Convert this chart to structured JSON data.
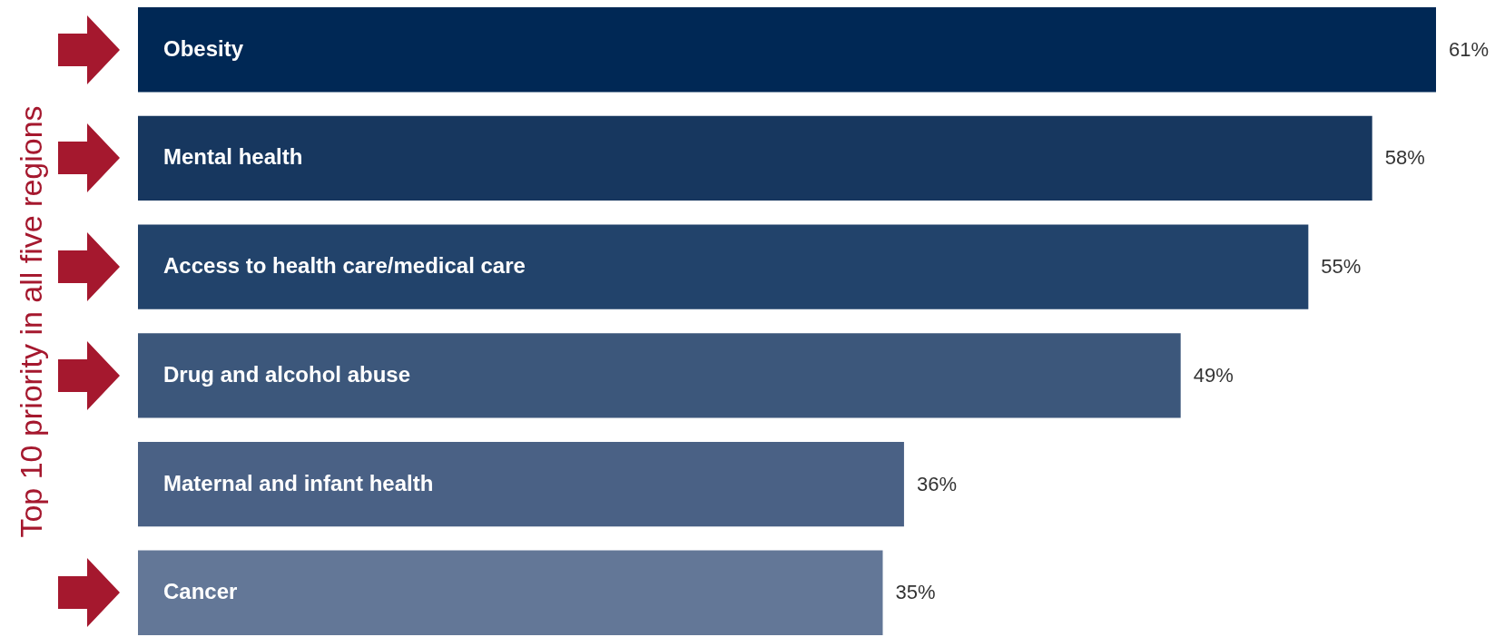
{
  "chart_data": {
    "type": "bar",
    "orientation": "horizontal",
    "ylabel": "Top 10 priority in all five regions",
    "categories": [
      "Obesity",
      "Mental health",
      "Access to health care/medical care",
      "Drug and alcohol abuse",
      "Maternal and infant health",
      "Cancer"
    ],
    "values": [
      61,
      58,
      55,
      49,
      36,
      35
    ],
    "value_labels": [
      "61%",
      "58%",
      "55%",
      "49%",
      "36%",
      "35%"
    ],
    "colors": [
      "#002855",
      "#17375f",
      "#22436b",
      "#3c577b",
      "#4a6185",
      "#637797"
    ]
  }
}
